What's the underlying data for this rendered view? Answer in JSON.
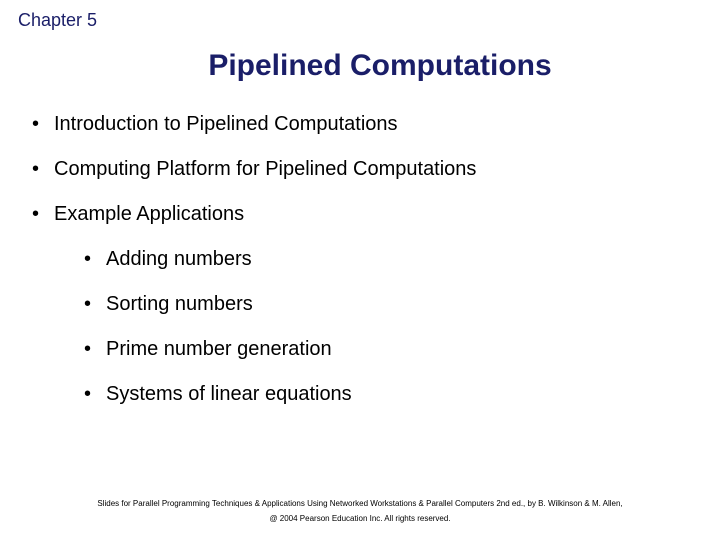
{
  "chapter_label": "Chapter 5",
  "title": "Pipelined Computations",
  "bullets": {
    "b0": "Introduction to Pipelined Computations",
    "b1": "Computing Platform for Pipelined Computations",
    "b2": "Example Applications",
    "sub0": "Adding numbers",
    "sub1": "Sorting numbers",
    "sub2": "Prime number generation",
    "sub3": "Systems of linear equations"
  },
  "footer": {
    "line1": "Slides for Parallel Programming Techniques & Applications Using Networked Workstations & Parallel Computers 2nd ed., by B. Wilkinson & M. Allen,",
    "line2": "@ 2004 Pearson Education Inc. All rights reserved."
  },
  "colors": {
    "heading": "#1a1e68",
    "body_text": "#000000",
    "background": "#ffffff"
  },
  "typography": {
    "chapter_fontsize": 18,
    "title_fontsize": 30,
    "bullet_fontsize": 20,
    "footer_fontsize": 8,
    "font_family": "Arial"
  }
}
